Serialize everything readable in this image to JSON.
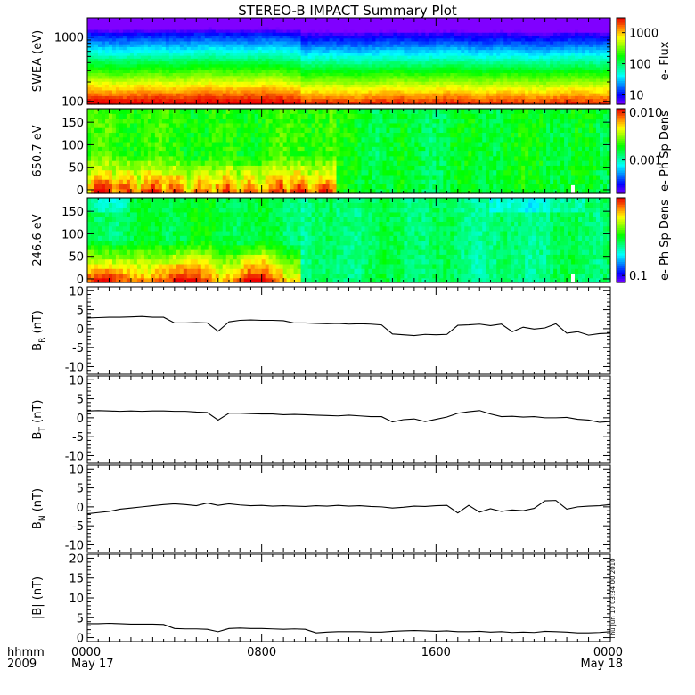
{
  "title": "STEREO-B IMPACT Summary Plot",
  "time_axis": {
    "row1_label": "hhmm",
    "row2_label": "2009",
    "ticks": [
      {
        "hhmm": "0000",
        "date": "May 17"
      },
      {
        "hhmm": "0800",
        "date": ""
      },
      {
        "hhmm": "1600",
        "date": ""
      },
      {
        "hhmm": "0000",
        "date": "May 18"
      }
    ],
    "range_hours": [
      0,
      24
    ]
  },
  "footer_stamp": "Thu Jun 10 03:34:00 2010",
  "chart_data": [
    {
      "id": "swea",
      "type": "heatmap",
      "ylabel": "SWEA (eV)",
      "yscale": "log",
      "ylim": [
        90,
        2000
      ],
      "yticks": [
        {
          "v": 100,
          "label": "100"
        },
        {
          "v": 1000,
          "label": "1000"
        }
      ],
      "colorbar": {
        "label": "e- Flux",
        "scale": "log",
        "range": [
          5,
          3000
        ],
        "ticks": [
          {
            "v": 10,
            "label": "10"
          },
          {
            "v": 100,
            "label": "100"
          },
          {
            "v": 1000,
            "label": "1000"
          }
        ]
      },
      "bands": [
        {
          "v_low": 90,
          "v_high": 200,
          "color": "red-orange"
        },
        {
          "v_low": 200,
          "v_high": 400,
          "color": "yellow-green"
        },
        {
          "v_low": 400,
          "v_high": 900,
          "color": "green-cyan"
        },
        {
          "v_low": 900,
          "v_high": 2000,
          "color": "blue-violet"
        }
      ]
    },
    {
      "id": "pad650",
      "type": "heatmap",
      "ylabel": "650.7 eV",
      "ylim": [
        -8,
        180
      ],
      "yticks": [
        {
          "v": 0,
          "label": "0"
        },
        {
          "v": 50,
          "label": "50"
        },
        {
          "v": 100,
          "label": "100"
        },
        {
          "v": 150,
          "label": "150"
        }
      ],
      "colorbar": {
        "label": "e- Ph Sp Dens",
        "scale": "log",
        "range": [
          0.0002,
          0.012
        ],
        "ticks": [
          {
            "v": 0.001,
            "label": "0.001"
          },
          {
            "v": 0.01,
            "label": "0.010"
          }
        ]
      }
    },
    {
      "id": "pad246",
      "type": "heatmap",
      "ylabel": "246.6 eV",
      "ylim": [
        -8,
        180
      ],
      "yticks": [
        {
          "v": 0,
          "label": "0"
        },
        {
          "v": 50,
          "label": "50"
        },
        {
          "v": 100,
          "label": "100"
        },
        {
          "v": 150,
          "label": "150"
        }
      ],
      "colorbar": {
        "label": "e- Ph Sp Dens",
        "scale": "log",
        "range": [
          0.08,
          1.2
        ],
        "ticks": [
          {
            "v": 0.1,
            "label": "0.1"
          }
        ]
      }
    },
    {
      "id": "br",
      "type": "line",
      "ylabel": "B",
      "ylabel_sub": "R",
      "ylabel_unit": "(nT)",
      "ylim": [
        -12,
        11
      ],
      "yticks": [
        {
          "v": -10,
          "label": "-10"
        },
        {
          "v": -5,
          "label": "-5"
        },
        {
          "v": 0,
          "label": "0"
        },
        {
          "v": 5,
          "label": "5"
        },
        {
          "v": 10,
          "label": "10"
        }
      ],
      "x": [
        0,
        0.5,
        1,
        1.5,
        2,
        2.5,
        3,
        3.5,
        4,
        4.5,
        5,
        5.5,
        6,
        6.5,
        7,
        7.5,
        8,
        8.5,
        9,
        9.5,
        10,
        10.5,
        11,
        11.5,
        12,
        12.5,
        13,
        13.5,
        14,
        14.5,
        15,
        15.5,
        16,
        16.5,
        17,
        17.5,
        18,
        18.5,
        19,
        19.5,
        20,
        20.5,
        21,
        21.5,
        22,
        22.5,
        23,
        23.5,
        24
      ],
      "y": [
        2.8,
        2.9,
        3.0,
        3.0,
        3.1,
        3.2,
        3.0,
        3.0,
        1.5,
        1.5,
        1.6,
        1.5,
        -0.7,
        1.8,
        2.2,
        2.3,
        2.2,
        2.2,
        2.1,
        1.5,
        1.5,
        1.4,
        1.3,
        1.4,
        1.2,
        1.3,
        1.2,
        1.0,
        -1.4,
        -1.6,
        -1.8,
        -1.5,
        -1.6,
        -1.5,
        0.9,
        1.0,
        1.2,
        0.8,
        1.2,
        -0.8,
        0.4,
        -0.1,
        0.2,
        1.3,
        -1.2,
        -0.8,
        -1.7,
        -1.3,
        -1.2
      ]
    },
    {
      "id": "bt",
      "type": "line",
      "ylabel": "B",
      "ylabel_sub": "T",
      "ylabel_unit": "(nT)",
      "ylim": [
        -12,
        11
      ],
      "yticks": [
        {
          "v": -10,
          "label": "-10"
        },
        {
          "v": -5,
          "label": "-5"
        },
        {
          "v": 0,
          "label": "0"
        },
        {
          "v": 5,
          "label": "5"
        },
        {
          "v": 10,
          "label": "10"
        }
      ],
      "x": [
        0,
        0.5,
        1,
        1.5,
        2,
        2.5,
        3,
        3.5,
        4,
        4.5,
        5,
        5.5,
        6,
        6.5,
        7,
        7.5,
        8,
        8.5,
        9,
        9.5,
        10,
        10.5,
        11,
        11.5,
        12,
        12.5,
        13,
        13.5,
        14,
        14.5,
        15,
        15.5,
        16,
        16.5,
        17,
        17.5,
        18,
        18.5,
        19,
        19.5,
        20,
        20.5,
        21,
        21.5,
        22,
        22.5,
        23,
        23.5,
        24
      ],
      "y": [
        1.8,
        1.9,
        1.8,
        1.7,
        1.8,
        1.7,
        1.8,
        1.8,
        1.7,
        1.7,
        1.5,
        1.4,
        -0.6,
        1.2,
        1.2,
        1.1,
        1.0,
        1.0,
        0.8,
        0.9,
        0.8,
        0.7,
        0.6,
        0.5,
        0.7,
        0.5,
        0.3,
        0.3,
        -1.1,
        -0.5,
        -0.3,
        -1.0,
        -0.4,
        0.2,
        1.2,
        1.6,
        1.9,
        1.0,
        0.3,
        0.4,
        0.2,
        0.3,
        0.0,
        0.0,
        0.1,
        -0.4,
        -0.6,
        -1.2,
        -1.0
      ]
    },
    {
      "id": "bn",
      "type": "line",
      "ylabel": "B",
      "ylabel_sub": "N",
      "ylabel_unit": "(nT)",
      "ylim": [
        -12,
        11
      ],
      "yticks": [
        {
          "v": -10,
          "label": "-10"
        },
        {
          "v": -5,
          "label": "-5"
        },
        {
          "v": 0,
          "label": "0"
        },
        {
          "v": 5,
          "label": "5"
        },
        {
          "v": 10,
          "label": "10"
        }
      ],
      "x": [
        0,
        0.5,
        1,
        1.5,
        2,
        2.5,
        3,
        3.5,
        4,
        4.5,
        5,
        5.5,
        6,
        6.5,
        7,
        7.5,
        8,
        8.5,
        9,
        9.5,
        10,
        10.5,
        11,
        11.5,
        12,
        12.5,
        13,
        13.5,
        14,
        14.5,
        15,
        15.5,
        16,
        16.5,
        17,
        17.5,
        18,
        18.5,
        19,
        19.5,
        20,
        20.5,
        21,
        21.5,
        22,
        22.5,
        23,
        23.5,
        24
      ],
      "y": [
        -1.8,
        -1.5,
        -1.2,
        -0.6,
        -0.3,
        0.0,
        0.3,
        0.6,
        0.8,
        0.6,
        0.3,
        1.0,
        0.4,
        0.8,
        0.5,
        0.3,
        0.4,
        0.2,
        0.3,
        0.2,
        0.1,
        0.3,
        0.2,
        0.4,
        0.2,
        0.3,
        0.1,
        0.0,
        -0.3,
        -0.1,
        0.2,
        0.1,
        0.3,
        0.4,
        -1.6,
        0.4,
        -1.4,
        -0.5,
        -1.2,
        -0.8,
        -1.0,
        -0.4,
        1.6,
        1.7,
        -0.6,
        0.0,
        0.2,
        0.3,
        0.6
      ]
    },
    {
      "id": "bmag",
      "type": "line",
      "ylabel": "|B| (nT)",
      "ylim": [
        -1,
        21
      ],
      "yticks": [
        {
          "v": 0,
          "label": "0"
        },
        {
          "v": 5,
          "label": "5"
        },
        {
          "v": 10,
          "label": "10"
        },
        {
          "v": 15,
          "label": "15"
        },
        {
          "v": 20,
          "label": "20"
        }
      ],
      "x": [
        0,
        0.5,
        1,
        1.5,
        2,
        2.5,
        3,
        3.5,
        4,
        4.5,
        5,
        5.5,
        6,
        6.5,
        7,
        7.5,
        8,
        8.5,
        9,
        9.5,
        10,
        10.5,
        11,
        11.5,
        12,
        12.5,
        13,
        13.5,
        14,
        14.5,
        15,
        15.5,
        16,
        16.5,
        17,
        17.5,
        18,
        18.5,
        19,
        19.5,
        20,
        20.5,
        21,
        21.5,
        22,
        22.5,
        23,
        23.5,
        24
      ],
      "y": [
        3.5,
        3.5,
        3.6,
        3.5,
        3.4,
        3.4,
        3.4,
        3.3,
        2.3,
        2.2,
        2.2,
        2.1,
        1.5,
        2.3,
        2.4,
        2.3,
        2.3,
        2.2,
        2.1,
        2.2,
        2.1,
        1.2,
        1.4,
        1.5,
        1.5,
        1.5,
        1.4,
        1.4,
        1.6,
        1.7,
        1.8,
        1.7,
        1.6,
        1.7,
        1.5,
        1.5,
        1.6,
        1.4,
        1.5,
        1.3,
        1.4,
        1.3,
        1.6,
        1.5,
        1.4,
        1.2,
        1.2,
        1.3,
        1.5
      ]
    }
  ]
}
